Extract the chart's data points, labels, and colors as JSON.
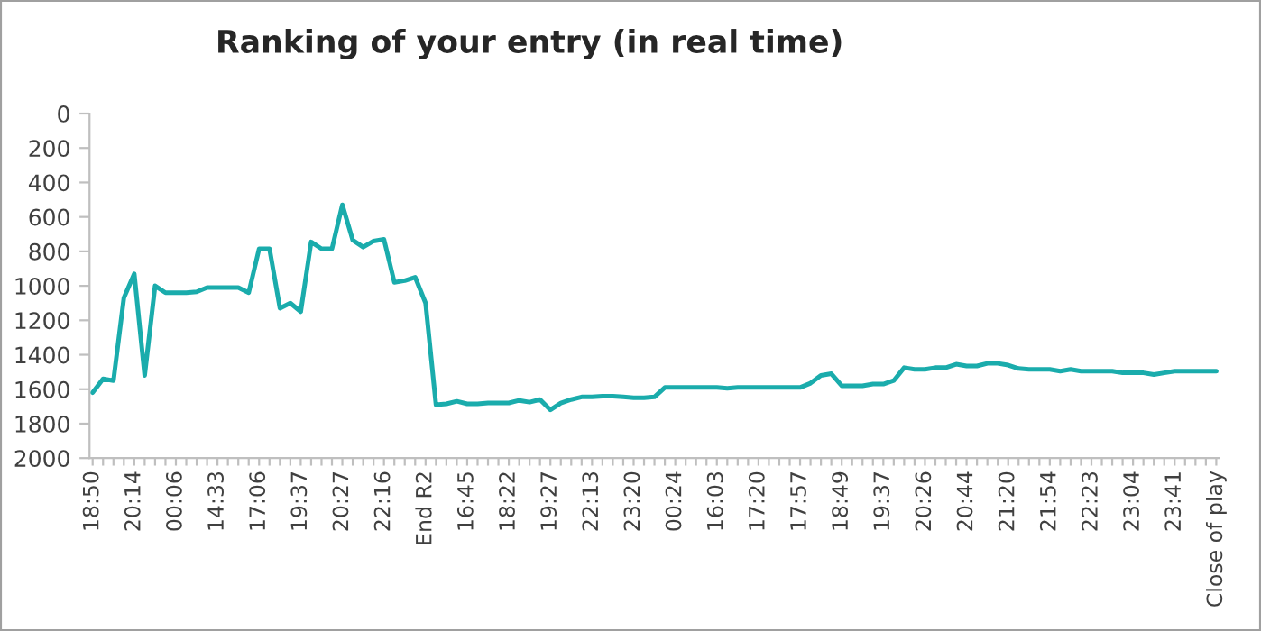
{
  "chart_data": {
    "type": "line",
    "title": "Ranking of your entry (in real time)",
    "categories": [
      "18:50",
      null,
      null,
      null,
      "20:14",
      null,
      null,
      null,
      "00:06",
      null,
      null,
      null,
      "14:33",
      null,
      null,
      null,
      "17:06",
      null,
      null,
      null,
      "19:37",
      null,
      null,
      null,
      "20:27",
      null,
      null,
      null,
      "22:16",
      null,
      null,
      null,
      "End R2",
      null,
      null,
      null,
      "16:45",
      null,
      null,
      null,
      "18:22",
      null,
      null,
      null,
      "19:27",
      null,
      null,
      null,
      "22:13",
      null,
      null,
      null,
      "23:20",
      null,
      null,
      null,
      "00:24",
      null,
      null,
      null,
      "16:03",
      null,
      null,
      null,
      "17:20",
      null,
      null,
      null,
      "17:57",
      null,
      null,
      null,
      "18:49",
      null,
      null,
      null,
      "19:37",
      null,
      null,
      null,
      "20:26",
      null,
      null,
      null,
      "20:44",
      null,
      null,
      null,
      "21:20",
      null,
      null,
      null,
      "21:54",
      null,
      null,
      null,
      "22:23",
      null,
      null,
      null,
      "23:04",
      null,
      null,
      null,
      "23:41",
      null,
      null,
      null,
      "Close of play"
    ],
    "series": [
      {
        "color": "#1aacac",
        "values": [
          1620,
          1540,
          1550,
          1070,
          930,
          1520,
          1000,
          1040,
          1040,
          1040,
          1035,
          1010,
          1010,
          1010,
          1010,
          1040,
          785,
          785,
          1130,
          1100,
          1150,
          745,
          785,
          785,
          530,
          735,
          775,
          740,
          730,
          980,
          970,
          950,
          1100,
          1690,
          1685,
          1670,
          1685,
          1685,
          1680,
          1680,
          1680,
          1665,
          1675,
          1660,
          1720,
          1680,
          1660,
          1645,
          1645,
          1640,
          1640,
          1645,
          1650,
          1650,
          1645,
          1590,
          1590,
          1590,
          1590,
          1590,
          1590,
          1595,
          1590,
          1590,
          1590,
          1590,
          1590,
          1590,
          1590,
          1565,
          1520,
          1510,
          1580,
          1580,
          1580,
          1570,
          1570,
          1550,
          1475,
          1485,
          1485,
          1475,
          1475,
          1455,
          1465,
          1465,
          1450,
          1450,
          1460,
          1480,
          1485,
          1485,
          1485,
          1495,
          1485,
          1495,
          1495,
          1495,
          1495,
          1505,
          1505,
          1505,
          1515,
          1505,
          1495,
          1495,
          1495,
          1495,
          1495
        ]
      }
    ],
    "ylim": [
      2000,
      0
    ],
    "yticks": [
      0,
      200,
      400,
      600,
      800,
      1000,
      1200,
      1400,
      1600,
      1800,
      2000
    ],
    "grid": false,
    "legend": false,
    "marker": "none",
    "line_style": "solid"
  }
}
